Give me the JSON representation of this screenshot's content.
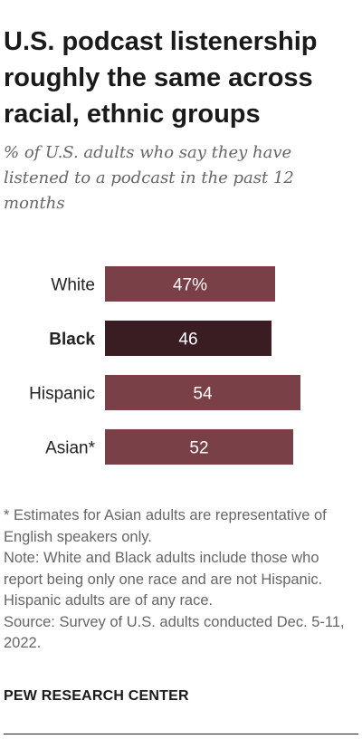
{
  "title": "U.S. podcast listenership roughly the same across racial, ethnic groups",
  "subtitle": "% of U.S. adults who say they have listened to a podcast in the past 12 months",
  "chart_data": {
    "type": "bar",
    "orientation": "horizontal",
    "categories": [
      "White",
      "Black",
      "Hispanic",
      "Asian*"
    ],
    "values": [
      47,
      46,
      54,
      52
    ],
    "data_labels": [
      "47%",
      "46",
      "54",
      "52"
    ],
    "highlighted_category": "Black",
    "xlim": [
      0,
      100
    ],
    "grid": false,
    "colors": {
      "bar": "#7a4048",
      "highlight_bar": "#3a1d22",
      "label_text": "#ffffff"
    }
  },
  "footnotes": {
    "asterisk_note": "* Estimates for Asian adults are representative of English speakers only.",
    "note": "Note: White and Black adults include those who report being only one race and are not Hispanic. Hispanic adults are of any race.",
    "source": "Source: Survey of U.S. adults conducted Dec. 5-11, 2022."
  },
  "organization": "PEW RESEARCH CENTER"
}
